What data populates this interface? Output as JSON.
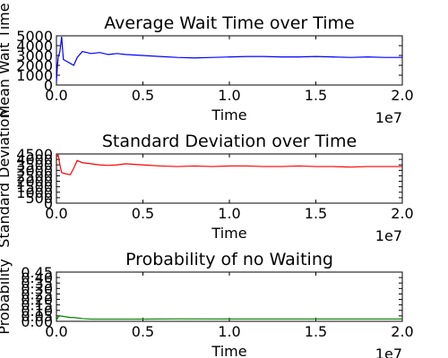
{
  "chart_data": [
    {
      "type": "line",
      "title": "Average Wait Time over Time",
      "xlabel": "Time",
      "ylabel": "Mean Wait Time",
      "x_offset_label": "1e7",
      "xlim": [
        0,
        2.0
      ],
      "ylim": [
        0,
        5000
      ],
      "x_ticks": [
        "0.0",
        "0.5",
        "1.0",
        "1.5",
        "2.0"
      ],
      "y_ticks": [
        "0",
        "1000",
        "2000",
        "3000",
        "4000",
        "5000"
      ],
      "grid": false,
      "series": [
        {
          "color": "#0000ff",
          "x": [
            0.0,
            0.005,
            0.01,
            0.02,
            0.03,
            0.04,
            0.05,
            0.06,
            0.08,
            0.1,
            0.12,
            0.15,
            0.2,
            0.25,
            0.3,
            0.35,
            0.4,
            0.5,
            0.6,
            0.7,
            0.8,
            0.9,
            1.0,
            1.1,
            1.2,
            1.3,
            1.4,
            1.5,
            1.6,
            1.7,
            1.8,
            1.9,
            2.0
          ],
          "y": [
            300,
            1800,
            2800,
            3400,
            4900,
            2600,
            2500,
            2400,
            2200,
            2000,
            2800,
            3400,
            3200,
            3300,
            3100,
            3200,
            3100,
            3000,
            2900,
            2800,
            2750,
            2800,
            2850,
            2900,
            2900,
            2850,
            2850,
            2900,
            2850,
            2800,
            2850,
            2800,
            2800
          ]
        }
      ]
    },
    {
      "type": "line",
      "title": "Standard Deviation over Time",
      "xlabel": "Time",
      "ylabel": "Standard Deviation",
      "x_offset_label": "1e7",
      "xlim": [
        0,
        2.0
      ],
      "ylim": [
        0,
        4500
      ],
      "x_ticks": [
        "0.0",
        "0.5",
        "1.0",
        "1.5",
        "2.0"
      ],
      "y_ticks": [
        "0",
        "500",
        "1000",
        "1500",
        "2000",
        "2500",
        "3000",
        "3500",
        "4000",
        "4500"
      ],
      "grid": false,
      "series": [
        {
          "color": "#ff0000",
          "x": [
            0.0,
            0.01,
            0.02,
            0.03,
            0.05,
            0.08,
            0.1,
            0.12,
            0.15,
            0.2,
            0.25,
            0.3,
            0.35,
            0.4,
            0.45,
            0.5,
            0.6,
            0.7,
            0.8,
            0.9,
            1.0,
            1.1,
            1.2,
            1.3,
            1.4,
            1.5,
            1.6,
            1.7,
            1.8,
            1.9,
            2.0
          ],
          "y": [
            4200,
            4400,
            3500,
            2800,
            2700,
            2600,
            3200,
            3900,
            3700,
            3600,
            3500,
            3450,
            3500,
            3600,
            3550,
            3500,
            3400,
            3350,
            3400,
            3350,
            3400,
            3400,
            3350,
            3350,
            3400,
            3350,
            3350,
            3300,
            3350,
            3350,
            3350
          ]
        }
      ]
    },
    {
      "type": "line",
      "title": "Probability of no Waiting",
      "xlabel": "Time",
      "ylabel": "Probability",
      "x_offset_label": "1e7",
      "xlim": [
        0,
        2.0
      ],
      "ylim": [
        0,
        0.45
      ],
      "x_ticks": [
        "0.0",
        "0.5",
        "1.0",
        "1.5",
        "2.0"
      ],
      "y_ticks": [
        "0.00",
        "0.05",
        "0.10",
        "0.15",
        "0.20",
        "0.25",
        "0.30",
        "0.35",
        "0.40",
        "0.45"
      ],
      "grid": false,
      "series": [
        {
          "color": "#008000",
          "x": [
            0.0,
            0.01,
            0.02,
            0.04,
            0.06,
            0.08,
            0.1,
            0.15,
            0.2,
            0.3,
            0.5,
            0.7,
            1.0,
            1.3,
            1.5,
            1.7,
            2.0
          ],
          "y": [
            0.01,
            0.04,
            0.05,
            0.045,
            0.04,
            0.035,
            0.035,
            0.025,
            0.02,
            0.02,
            0.02,
            0.022,
            0.021,
            0.021,
            0.021,
            0.021,
            0.021
          ]
        }
      ]
    }
  ]
}
